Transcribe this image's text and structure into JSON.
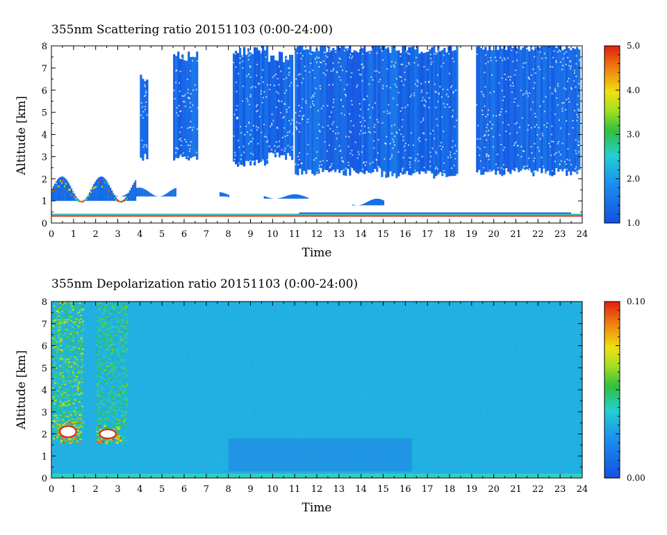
{
  "chart_data": [
    {
      "type": "heatmap",
      "title": "355nm Scattering ratio  20151103 (0:00-24:00)",
      "xlabel": "Time",
      "ylabel": "Altitude [km]",
      "xlim": [
        0,
        24
      ],
      "ylim": [
        0,
        8
      ],
      "x_ticks": [
        "0",
        "1",
        "2",
        "3",
        "4",
        "5",
        "6",
        "7",
        "8",
        "9",
        "10",
        "11",
        "12",
        "13",
        "14",
        "15",
        "16",
        "17",
        "18",
        "19",
        "20",
        "21",
        "22",
        "23",
        "24"
      ],
      "y_ticks": [
        "0",
        "1",
        "2",
        "3",
        "4",
        "5",
        "6",
        "7",
        "8"
      ],
      "colorbar": {
        "min": 1.0,
        "max": 5.0,
        "tick_labels": [
          "1.0",
          "2.0",
          "3.0",
          "4.0",
          "5.0"
        ],
        "tick_values": [
          1.0,
          2.0,
          3.0,
          4.0,
          5.0
        ]
      },
      "cloud_layers": [
        {
          "t0": 4.0,
          "t1": 4.3,
          "bottom": 3.0,
          "top": 6.6
        },
        {
          "t0": 5.5,
          "t1": 6.6,
          "bottom": 2.9,
          "top": 7.5
        },
        {
          "t0": 8.2,
          "t1": 9.8,
          "bottom": 2.7,
          "top": 7.8
        },
        {
          "t0": 9.8,
          "t1": 10.9,
          "bottom": 3.0,
          "top": 7.5
        },
        {
          "t0": 11.0,
          "t1": 14.9,
          "bottom": 2.3,
          "top": 7.9
        },
        {
          "t0": 14.9,
          "t1": 18.3,
          "bottom": 2.2,
          "top": 7.9
        },
        {
          "t0": 19.2,
          "t1": 23.9,
          "bottom": 2.3,
          "top": 8.0
        }
      ],
      "aerosol_layers": [
        {
          "t0": 0.0,
          "t1": 3.8,
          "bottom": 1.0,
          "top": 2.1,
          "peak": 5.0
        },
        {
          "t0": 2.0,
          "t1": 5.6,
          "bottom": 1.2,
          "top": 1.6,
          "peak": 1.4
        },
        {
          "t0": 7.6,
          "t1": 8.0,
          "bottom": 1.2,
          "top": 1.4,
          "peak": 2.0
        },
        {
          "t0": 9.6,
          "t1": 11.6,
          "bottom": 1.1,
          "top": 1.3,
          "peak": 1.3
        },
        {
          "t0": 13.6,
          "t1": 15.0,
          "bottom": 0.8,
          "top": 1.1,
          "peak": 1.2
        }
      ]
    },
    {
      "type": "heatmap",
      "title": "355nm Depolarization ratio  20151103 (0:00-24:00)",
      "xlabel": "Time",
      "ylabel": "Altitude [km]",
      "xlim": [
        0,
        24
      ],
      "ylim": [
        0,
        8
      ],
      "x_ticks": [
        "0",
        "1",
        "2",
        "3",
        "4",
        "5",
        "6",
        "7",
        "8",
        "9",
        "10",
        "11",
        "12",
        "13",
        "14",
        "15",
        "16",
        "17",
        "18",
        "19",
        "20",
        "21",
        "22",
        "23",
        "24"
      ],
      "y_ticks": [
        "0",
        "1",
        "2",
        "3",
        "4",
        "5",
        "6",
        "7",
        "8"
      ],
      "colorbar": {
        "min": 0.0,
        "max": 0.1,
        "tick_labels": [
          "0.00",
          "0.10"
        ],
        "tick_values": [
          0.0,
          0.1
        ]
      },
      "background_value": 0.03,
      "high_depol_regions": [
        {
          "t0": 0.0,
          "t1": 1.4,
          "bottom": 1.8,
          "top": 8.0,
          "value": 0.07
        },
        {
          "t0": 2.0,
          "t1": 3.4,
          "bottom": 1.6,
          "top": 8.0,
          "value": 0.06
        },
        {
          "t0": 0.2,
          "t1": 1.3,
          "bottom": 1.6,
          "top": 2.6,
          "value": 0.1
        },
        {
          "t0": 2.0,
          "t1": 3.1,
          "bottom": 1.6,
          "top": 2.4,
          "value": 0.1
        }
      ]
    }
  ]
}
